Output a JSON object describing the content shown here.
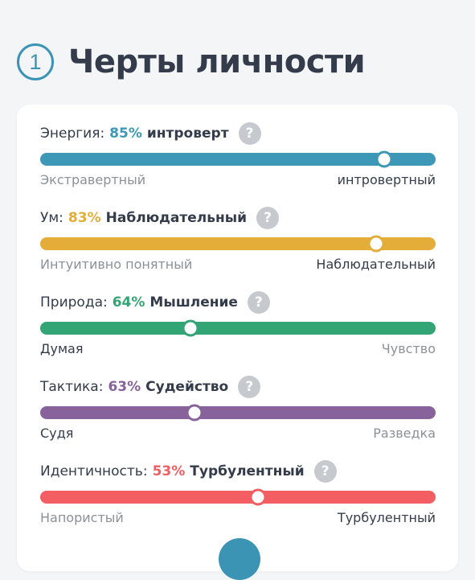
{
  "header": {
    "step": "1",
    "title": "Черты личности"
  },
  "traits": [
    {
      "label": "Энергия:",
      "percent": "85%",
      "type": "интроверт",
      "color": "#3d98b8",
      "position": 0.87,
      "left": "Экстравертный",
      "right": "интровертный",
      "active": "right"
    },
    {
      "label": "Ум:",
      "percent": "83%",
      "type": "Наблюдательный",
      "color": "#e4ad3a",
      "position": 0.85,
      "left": "Интуитивно понятный",
      "right": "Наблюдательный",
      "active": "right"
    },
    {
      "label": "Природа:",
      "percent": "64%",
      "type": "Мышление",
      "color": "#33a474",
      "position": 0.38,
      "left": "Думая",
      "right": "Чувство",
      "active": "left"
    },
    {
      "label": "Тактика:",
      "percent": "63%",
      "type": "Судейство",
      "color": "#88629b",
      "position": 0.39,
      "left": "Судя",
      "right": "Разведка",
      "active": "left"
    },
    {
      "label": "Идентичность:",
      "percent": "53%",
      "type": "Турбулентный",
      "color": "#f25e62",
      "position": 0.55,
      "left": "Напористый",
      "right": "Турбулентный",
      "active": "right"
    }
  ],
  "help_symbol": "?"
}
